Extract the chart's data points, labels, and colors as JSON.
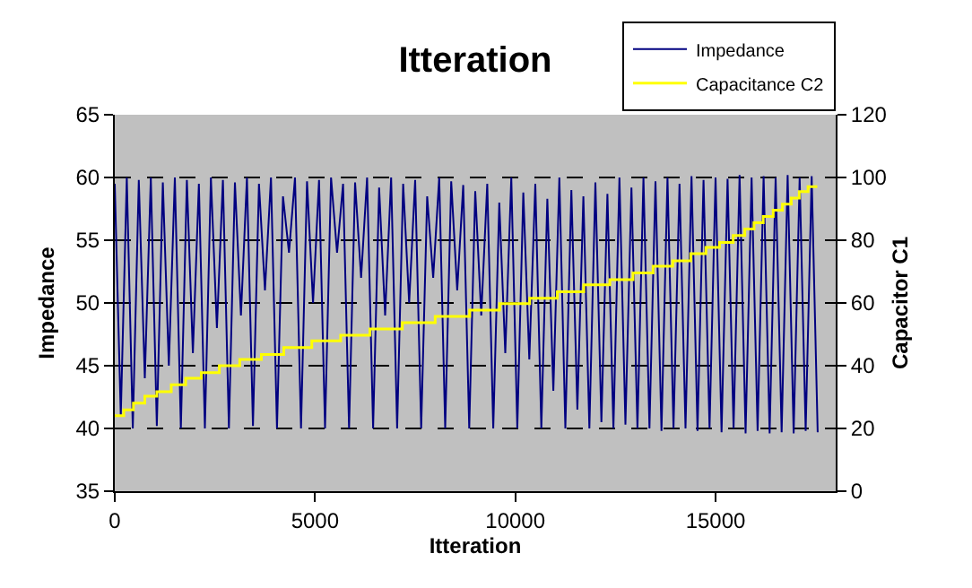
{
  "chart_data": {
    "type": "line",
    "title": "Itteration",
    "xlabel": "Itteration",
    "ylabel": "Impedance",
    "y2label": "Capacitor C1",
    "xlim": [
      0,
      18000
    ],
    "xticks": [
      0,
      5000,
      10000,
      15000
    ],
    "ylim": [
      35,
      65
    ],
    "yticks": [
      35,
      40,
      45,
      50,
      55,
      60,
      65
    ],
    "y2lim": [
      0,
      120
    ],
    "y2ticks": [
      0,
      20,
      40,
      60,
      80,
      100,
      120
    ],
    "grid": "y",
    "legend": "top right",
    "marker": "none",
    "line_style": "solid",
    "series": [
      {
        "name": "Impedance",
        "color": "#000080",
        "type": "line",
        "x": [
          0,
          150,
          300,
          450,
          600,
          750,
          900,
          1050,
          1200,
          1350,
          1500,
          1650,
          1800,
          1950,
          2100,
          2250,
          2400,
          2550,
          2700,
          2850,
          3000,
          3150,
          3300,
          3450,
          3600,
          3750,
          3900,
          4050,
          4200,
          4350,
          4500,
          4650,
          4800,
          4950,
          5100,
          5250,
          5400,
          5550,
          5700,
          5850,
          6000,
          6150,
          6300,
          6450,
          6600,
          6750,
          6900,
          7050,
          7200,
          7350,
          7500,
          7650,
          7800,
          7950,
          8100,
          8250,
          8400,
          8550,
          8700,
          8850,
          9000,
          9150,
          9300,
          9450,
          9600,
          9750,
          9900,
          10050,
          10200,
          10350,
          10500,
          10650,
          10800,
          10950,
          11100,
          11250,
          11400,
          11550,
          11700,
          11850,
          12000,
          12150,
          12300,
          12450,
          12600,
          12750,
          12900,
          13050,
          13200,
          13350,
          13500,
          13650,
          13800,
          13950,
          14100,
          14250,
          14400,
          14550,
          14700,
          14850,
          15000,
          15150,
          15300,
          15450,
          15600,
          15750,
          15900,
          16050,
          16200,
          16350,
          16500,
          16650,
          16800,
          16950,
          17100,
          17250,
          17400,
          17550
        ],
        "values": [
          59.5,
          41,
          60,
          40,
          59.8,
          44,
          60,
          40.2,
          59.6,
          45,
          60,
          40,
          59.8,
          46,
          59.5,
          40,
          60,
          48,
          59.8,
          40,
          59.6,
          49,
          60,
          40.2,
          59.5,
          51,
          60,
          40,
          58.5,
          54,
          60,
          40,
          59.7,
          50,
          59.8,
          40,
          60,
          54,
          59.5,
          40,
          59.6,
          52,
          60,
          40,
          59.2,
          49,
          60,
          40,
          59.5,
          50,
          59.8,
          40,
          58.5,
          52,
          60,
          40,
          59.7,
          51,
          59.4,
          40,
          58.9,
          49,
          59.5,
          40,
          58,
          46,
          60,
          40,
          58.8,
          45.5,
          59.5,
          40,
          58.3,
          43,
          60,
          40,
          59,
          41.5,
          58.5,
          40,
          59.6,
          40.5,
          58.7,
          40,
          60,
          40.3,
          59.2,
          40,
          60,
          40,
          59.7,
          39.8,
          60,
          40,
          59.5,
          40,
          60.1,
          39.8,
          59.8,
          40,
          60,
          39.7,
          59.9,
          40,
          60.2,
          39.6,
          60,
          39.8,
          60.1,
          39.6,
          60,
          39.7,
          60.2,
          39.6,
          60,
          39.8,
          60.1,
          39.7
        ]
      },
      {
        "name": "Capacitance C2",
        "color": "#ffff00",
        "type": "step",
        "axis": "y2",
        "x": [
          0,
          225,
          465,
          750,
          1050,
          1410,
          1770,
          2160,
          2610,
          3120,
          3660,
          4220,
          4920,
          5640,
          6370,
          7180,
          8000,
          8860,
          9610,
          10360,
          11050,
          11710,
          12360,
          12940,
          13440,
          13930,
          14380,
          14760,
          15100,
          15440,
          15730,
          15960,
          16190,
          16440,
          16670,
          16890,
          17090,
          17310,
          17540
        ],
        "values": [
          24.1,
          25.9,
          28.1,
          30.3,
          31.7,
          33.9,
          36,
          37.8,
          40,
          42,
          43.6,
          45.8,
          47.9,
          49.7,
          51.7,
          53.7,
          55.7,
          57.7,
          59.8,
          61.5,
          63.6,
          65.8,
          67.4,
          69.6,
          71.7,
          73.4,
          75.7,
          77.7,
          79.3,
          81.5,
          83.6,
          85.6,
          87.6,
          89.6,
          91.5,
          93.4,
          95.5,
          97.1,
          97.1
        ]
      }
    ]
  }
}
